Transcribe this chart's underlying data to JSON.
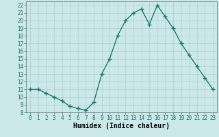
{
  "x": [
    0,
    1,
    2,
    3,
    4,
    5,
    6,
    7,
    8,
    9,
    10,
    11,
    12,
    13,
    14,
    15,
    16,
    17,
    18,
    19,
    20,
    21,
    22,
    23
  ],
  "y": [
    11,
    11,
    10.5,
    10,
    9.5,
    8.8,
    8.5,
    8.3,
    9.3,
    13,
    15,
    18,
    20,
    21,
    21.5,
    19.5,
    22,
    20.5,
    19,
    17,
    15.5,
    14,
    12.5,
    11
  ],
  "line_color": "#1a7a6e",
  "marker": "+",
  "marker_size": 4,
  "marker_color": "#1a7a6e",
  "bg_color": "#cce8e8",
  "grid_color": "#aacfcf",
  "xlabel": "Humidex (Indice chaleur)",
  "xlim": [
    -0.5,
    23.5
  ],
  "ylim": [
    8,
    22.5
  ],
  "yticks": [
    8,
    9,
    10,
    11,
    12,
    13,
    14,
    15,
    16,
    17,
    18,
    19,
    20,
    21,
    22
  ],
  "xticks": [
    0,
    1,
    2,
    3,
    4,
    5,
    6,
    7,
    8,
    9,
    10,
    11,
    12,
    13,
    14,
    15,
    16,
    17,
    18,
    19,
    20,
    21,
    22,
    23
  ],
  "tick_fontsize": 5.5,
  "xlabel_fontsize": 7,
  "line_width": 1.0
}
